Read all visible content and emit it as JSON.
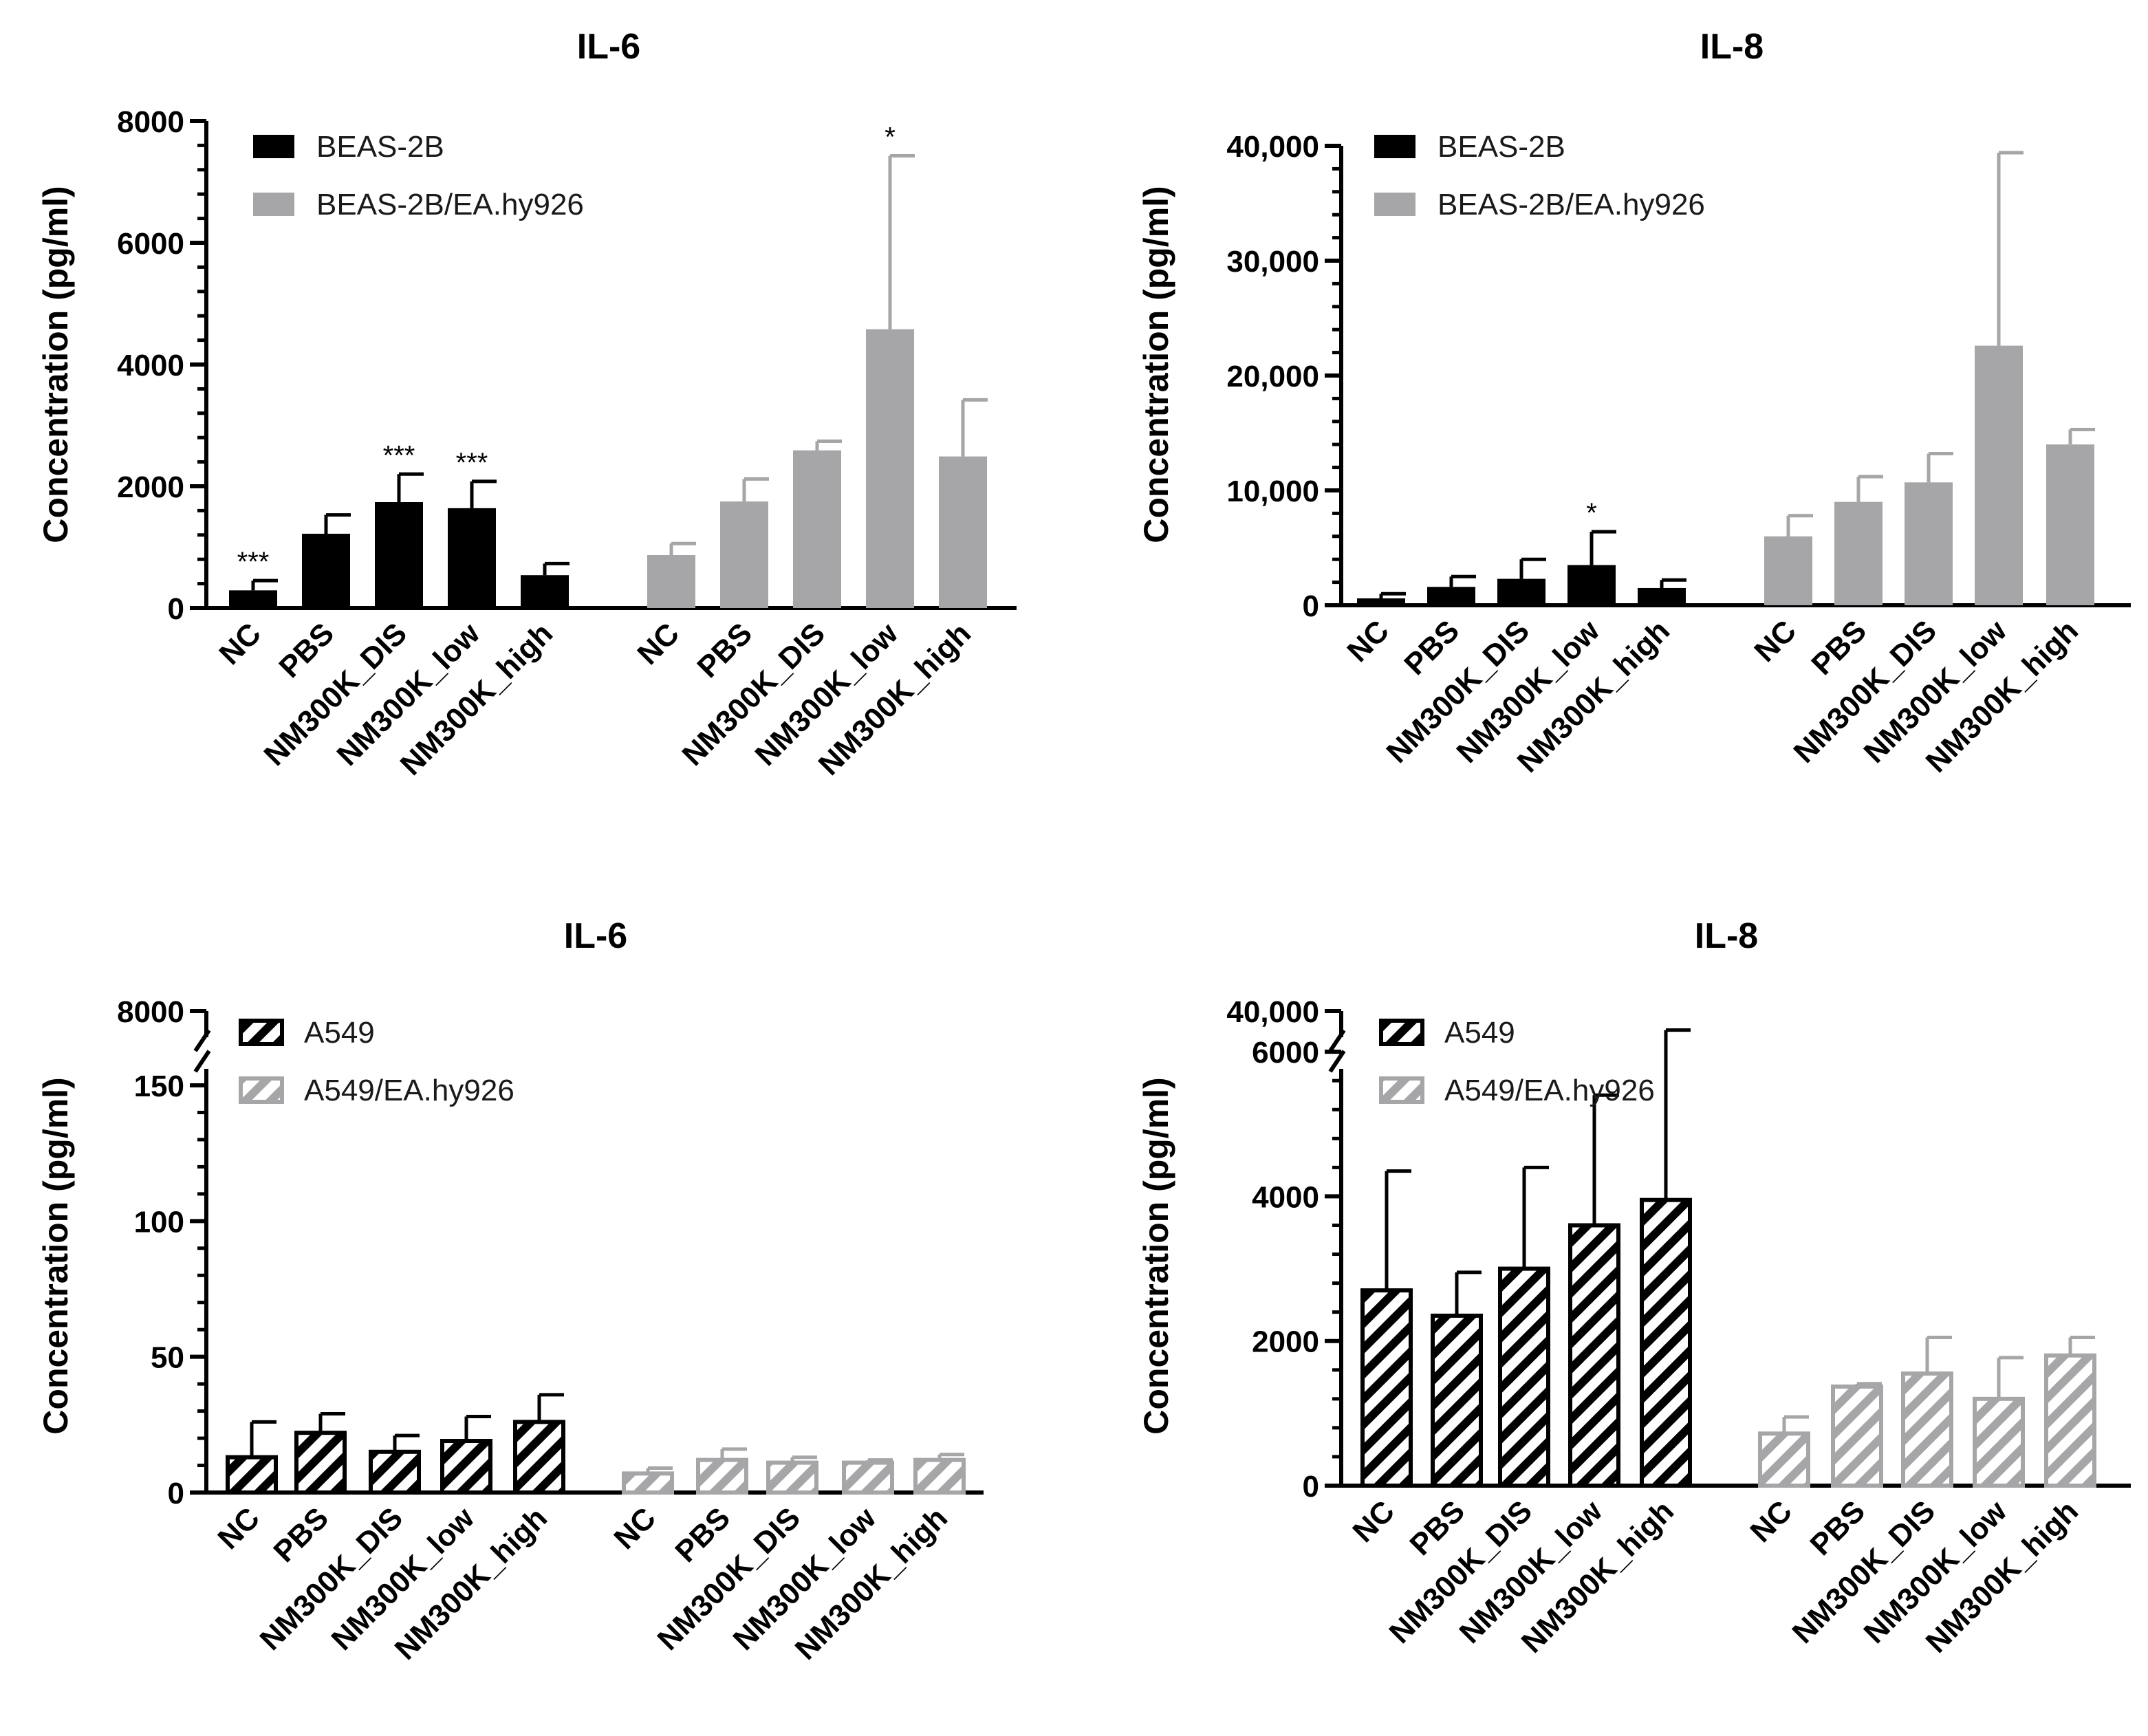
{
  "chart_data": [
    {
      "type": "bar",
      "panel": "top-left",
      "title": "IL-6",
      "ylabel": "Concentration (pg/ml)",
      "ylim": [
        0,
        8000
      ],
      "yticks": [
        0,
        2000,
        4000,
        6000,
        8000
      ],
      "ytick_labels": [
        "0",
        "2000",
        "4000",
        "6000",
        "8000"
      ],
      "axis_break": null,
      "pattern": "solid",
      "legend_position": "top-left",
      "categories": [
        "NC",
        "PBS",
        "NM300K_DIS",
        "NM300K_low",
        "NM300K_high"
      ],
      "series": [
        {
          "name": "BEAS-2B",
          "color": "#000000",
          "values": [
            290,
            1220,
            1740,
            1640,
            540
          ],
          "errors": [
            160,
            310,
            460,
            440,
            190
          ],
          "annotations": [
            "***",
            "",
            "***",
            "***",
            ""
          ]
        },
        {
          "name": "BEAS-2B/EA.hy926",
          "color": "#a6a6a8",
          "values": [
            870,
            1750,
            2590,
            4580,
            2490
          ],
          "errors": [
            190,
            370,
            150,
            2850,
            930
          ],
          "annotations": [
            "",
            "",
            "",
            "*",
            ""
          ]
        }
      ]
    },
    {
      "type": "bar",
      "panel": "top-right",
      "title": "IL-8",
      "ylabel": "Concentration (pg/ml)",
      "ylim": [
        0,
        40000
      ],
      "yticks": [
        0,
        10000,
        20000,
        30000,
        40000
      ],
      "ytick_labels": [
        "0",
        "10,000",
        "20,000",
        "30,000",
        "40,000"
      ],
      "axis_break": null,
      "pattern": "solid",
      "legend_position": "top-left",
      "categories": [
        "NC",
        "PBS",
        "NM300K_DIS",
        "NM300K_low",
        "NM300K_high"
      ],
      "series": [
        {
          "name": "BEAS-2B",
          "color": "#000000",
          "values": [
            600,
            1600,
            2300,
            3500,
            1500
          ],
          "errors": [
            400,
            900,
            1700,
            2900,
            700
          ],
          "annotations": [
            "",
            "",
            "",
            "*",
            ""
          ]
        },
        {
          "name": "BEAS-2B/EA.hy926",
          "color": "#a6a6a8",
          "values": [
            6000,
            9000,
            10700,
            22600,
            14000
          ],
          "errors": [
            1800,
            2200,
            2500,
            16800,
            1300
          ],
          "annotations": [
            "",
            "",
            "",
            "",
            ""
          ]
        }
      ]
    },
    {
      "type": "bar",
      "panel": "bottom-left",
      "title": "IL-6",
      "ylabel": "Concentration (pg/ml)",
      "ylim": [
        0,
        150
      ],
      "yticks": [
        0,
        50,
        100,
        150
      ],
      "ytick_labels": [
        "0",
        "50",
        "100",
        "150"
      ],
      "axis_break": {
        "upper_label": "8000"
      },
      "pattern": "hatched",
      "legend_position": "top-left",
      "categories": [
        "NC",
        "PBS",
        "NM300K_DIS",
        "NM300K_low",
        "NM300K_high"
      ],
      "series": [
        {
          "name": "A549",
          "color": "#000000",
          "values": [
            13,
            22,
            15,
            19,
            26
          ],
          "errors": [
            13,
            7,
            6,
            9,
            10
          ],
          "annotations": [
            "",
            "",
            "",
            "",
            ""
          ]
        },
        {
          "name": "A549/EA.hy926",
          "color": "#a6a6a8",
          "values": [
            7,
            12,
            11,
            11,
            12
          ],
          "errors": [
            2,
            4,
            2,
            1,
            2
          ],
          "annotations": [
            "",
            "",
            "",
            "",
            ""
          ]
        }
      ]
    },
    {
      "type": "bar",
      "panel": "bottom-right",
      "title": "IL-8",
      "ylabel": "Concentration (pg/ml)",
      "ylim": [
        0,
        7000
      ],
      "yticks": [
        0,
        2000,
        4000,
        6000
      ],
      "ytick_labels": [
        "0",
        "2000",
        "4000",
        "6000"
      ],
      "axis_break": {
        "upper_label": "40,000"
      },
      "pattern": "hatched",
      "legend_position": "top-left",
      "categories": [
        "NC",
        "PBS",
        "NM300K_DIS",
        "NM300K_low",
        "NM300K_high"
      ],
      "series": [
        {
          "name": "A549",
          "color": "#000000",
          "values": [
            2700,
            2350,
            3000,
            3600,
            3950
          ],
          "errors": [
            1650,
            600,
            1400,
            1800,
            2350
          ],
          "annotations": [
            "",
            "",
            "",
            "",
            ""
          ]
        },
        {
          "name": "A549/EA.hy926",
          "color": "#a6a6a8",
          "values": [
            720,
            1370,
            1550,
            1200,
            1800
          ],
          "errors": [
            230,
            40,
            500,
            570,
            250
          ],
          "annotations": [
            "",
            "",
            "",
            "",
            ""
          ]
        }
      ]
    }
  ]
}
